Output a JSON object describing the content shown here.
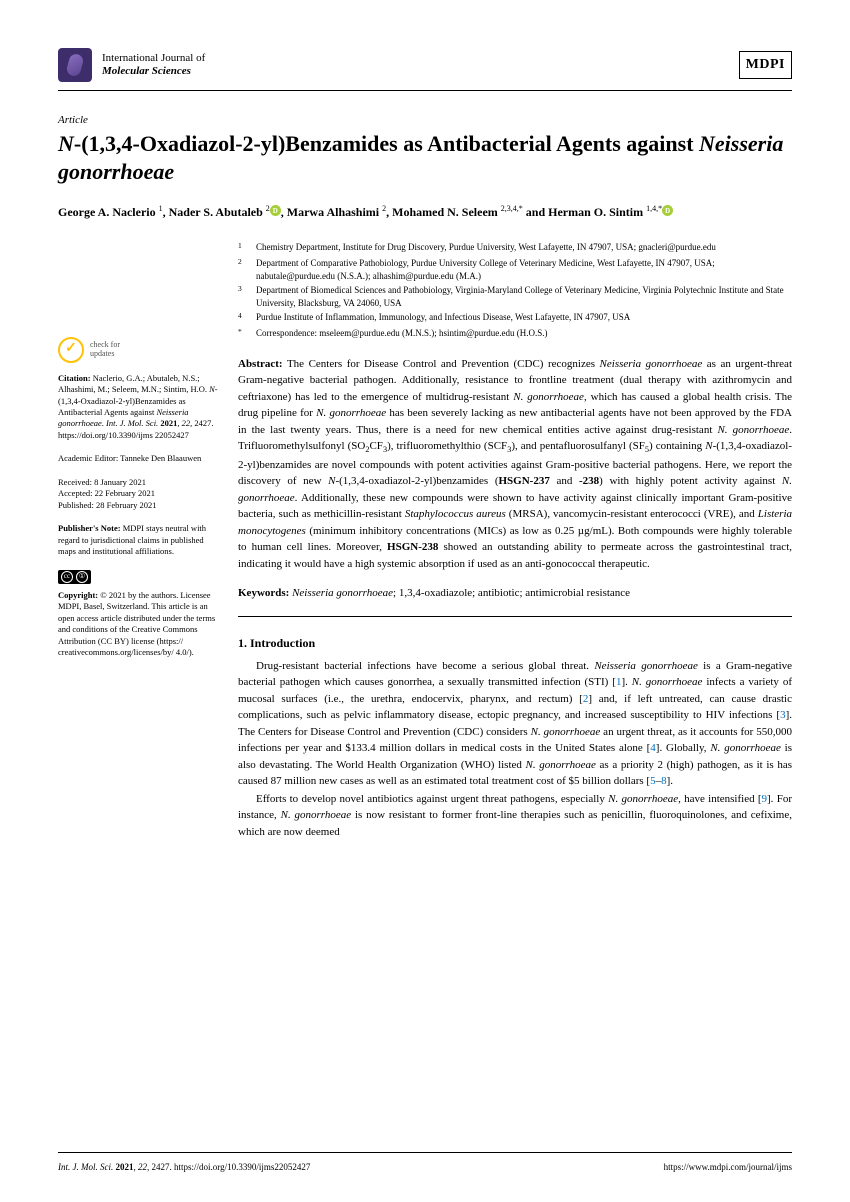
{
  "header": {
    "journal_line1": "International Journal of",
    "journal_line2": "Molecular Sciences",
    "publisher_logo": "MDPI"
  },
  "article": {
    "type": "Article",
    "title_html": "<span class='ital'>N</span>-(1,3,4-Oxadiazol-2-yl)Benzamides as Antibacterial Agents against <span class='ital'>Neisseria gonorrhoeae</span>",
    "authors_html": "George A. Naclerio <sup>1</sup>, Nader S. Abutaleb <sup>2</sup><span class='orcid'></span>, Marwa Alhashimi <sup>2</sup>, Mohamed N. Seleem <sup>2,3,4,*</sup> and Herman O. Sintim <sup>1,4,*</sup><span class='orcid'></span>"
  },
  "affiliations": [
    {
      "num": "1",
      "text": "Chemistry Department, Institute for Drug Discovery, Purdue University, West Lafayette, IN 47907, USA; gnacleri@purdue.edu"
    },
    {
      "num": "2",
      "text": "Department of Comparative Pathobiology, Purdue University College of Veterinary Medicine, West Lafayette, IN 47907, USA; nabutale@purdue.edu (N.S.A.); alhashim@purdue.edu (M.A.)"
    },
    {
      "num": "3",
      "text": "Department of Biomedical Sciences and Pathobiology, Virginia-Maryland College of Veterinary Medicine, Virginia Polytechnic Institute and State University, Blacksburg, VA 24060, USA"
    },
    {
      "num": "4",
      "text": "Purdue Institute of Inflammation, Immunology, and Infectious Disease, West Lafayette, IN 47907, USA"
    },
    {
      "num": "*",
      "text": "Correspondence: mseleem@purdue.edu (M.N.S.); hsintim@purdue.edu (H.O.S.)"
    }
  ],
  "abstract": {
    "label": "Abstract:",
    "text_html": "The Centers for Disease Control and Prevention (CDC) recognizes <span class='ital'>Neisseria gonorrhoeae</span> as an urgent-threat Gram-negative bacterial pathogen. Additionally, resistance to frontline treatment (dual therapy with azithromycin and ceftriaxone) has led to the emergence of multidrug-resistant <span class='ital'>N. gonorrhoeae</span>, which has caused a global health crisis. The drug pipeline for <span class='ital'>N. gonorrhoeae</span> has been severely lacking as new antibacterial agents have not been approved by the FDA in the last twenty years. Thus, there is a need for new chemical entities active against drug-resistant <span class='ital'>N. gonorrhoeae</span>. Trifluoromethylsulfonyl (SO<sub>2</sub>CF<sub>3</sub>), trifluoromethylthio (SCF<sub>3</sub>), and pentafluorosulfanyl (SF<sub>5</sub>) containing <span class='ital'>N</span>-(1,3,4-oxadiazol-2-yl)benzamides are novel compounds with potent activities against Gram-positive bacterial pathogens. Here, we report the discovery of new <span class='ital'>N</span>-(1,3,4-oxadiazol-2-yl)benzamides (<b>HSGN-237</b> and <b>-238</b>) with highly potent activity against <span class='ital'>N. gonorrhoeae</span>. Additionally, these new compounds were shown to have activity against clinically important Gram-positive bacteria, such as methicillin-resistant <span class='ital'>Staphylococcus aureus</span> (MRSA), vancomycin-resistant enterococci (VRE), and <span class='ital'>Listeria monocytogenes</span> (minimum inhibitory concentrations (MICs) as low as 0.25 µg/mL). Both compounds were highly tolerable to human cell lines. Moreover, <b>HSGN-238</b> showed an outstanding ability to permeate across the gastrointestinal tract, indicating it would have a high systemic absorption if used as an anti-gonococcal therapeutic."
  },
  "keywords": {
    "label": "Keywords:",
    "text_html": "<span class='ital'>Neisseria gonorrhoeae</span>; 1,3,4-oxadiazole; antibiotic; antimicrobial resistance"
  },
  "section1": {
    "heading": "1. Introduction",
    "p1_html": "Drug-resistant bacterial infections have become a serious global threat. <span class='ital'>Neisseria gonorrhoeae</span> is a Gram-negative bacterial pathogen which causes gonorrhea, a sexually transmitted infection (STI) [<span class='cite'>1</span>]. <span class='ital'>N. gonorrhoeae</span> infects a variety of mucosal surfaces (i.e., the urethra, endocervix, pharynx, and rectum) [<span class='cite'>2</span>] and, if left untreated, can cause drastic complications, such as pelvic inflammatory disease, ectopic pregnancy, and increased susceptibility to HIV infections [<span class='cite'>3</span>]. The Centers for Disease Control and Prevention (CDC) considers <span class='ital'>N. gonorrhoeae</span> an urgent threat, as it accounts for 550,000 infections per year and $133.4 million dollars in medical costs in the United States alone [<span class='cite'>4</span>]. Globally, <span class='ital'>N. gonorrhoeae</span> is also devastating. The World Health Organization (WHO) listed <span class='ital'>N. gonorrhoeae</span> as a priority 2 (high) pathogen, as it is has caused 87 million new cases as well as an estimated total treatment cost of $5 billion dollars [<span class='cite'>5</span>–<span class='cite'>8</span>].",
    "p2_html": "Efforts to develop novel antibiotics against urgent threat pathogens, especially <span class='ital'>N. gonorrhoeae</span>, have intensified [<span class='cite'>9</span>]. For instance, <span class='ital'>N. gonorrhoeae</span> is now resistant to former front-line therapies such as penicillin, fluoroquinolones, and cefixime, which are now deemed"
  },
  "sidebar": {
    "check_line1": "check for",
    "check_line2": "updates",
    "citation_label": "Citation:",
    "citation_text_html": "Naclerio, G.A.; Abutaleb, N.S.; Alhashimi, M.; Seleem, M.N.; Sintim, H.O. <span class='ital'>N</span>-(1,3,4-Oxadiazol-2-yl)Benzamides as Antibacterial Agents against <span class='ital'>Neisseria gonorrhoeae</span>. <span class='ital'>Int. J. Mol. Sci.</span> <b>2021</b>, <span class='ital'>22</span>, 2427. https://doi.org/10.3390/ijms 22052427",
    "editor_label": "Academic Editor:",
    "editor_name": "Tanneke Den Blaauwen",
    "received": "Received: 8 January 2021",
    "accepted": "Accepted: 22 February 2021",
    "published": "Published: 28 February 2021",
    "pubnote_label": "Publisher's Note:",
    "pubnote_text": "MDPI stays neutral with regard to jurisdictional claims in published maps and institutional affiliations.",
    "copyright_label": "Copyright:",
    "copyright_text": "© 2021 by the authors. Licensee MDPI, Basel, Switzerland. This article is an open access article distributed under the terms and conditions of the Creative Commons Attribution (CC BY) license (https:// creativecommons.org/licenses/by/ 4.0/)."
  },
  "footer": {
    "left_html": "<span class='ital'>Int. J. Mol. Sci.</span> <b>2021</b>, <span class='ital'>22</span>, 2427. https://doi.org/10.3390/ijms22052427",
    "right": "https://www.mdpi.com/journal/ijms"
  }
}
